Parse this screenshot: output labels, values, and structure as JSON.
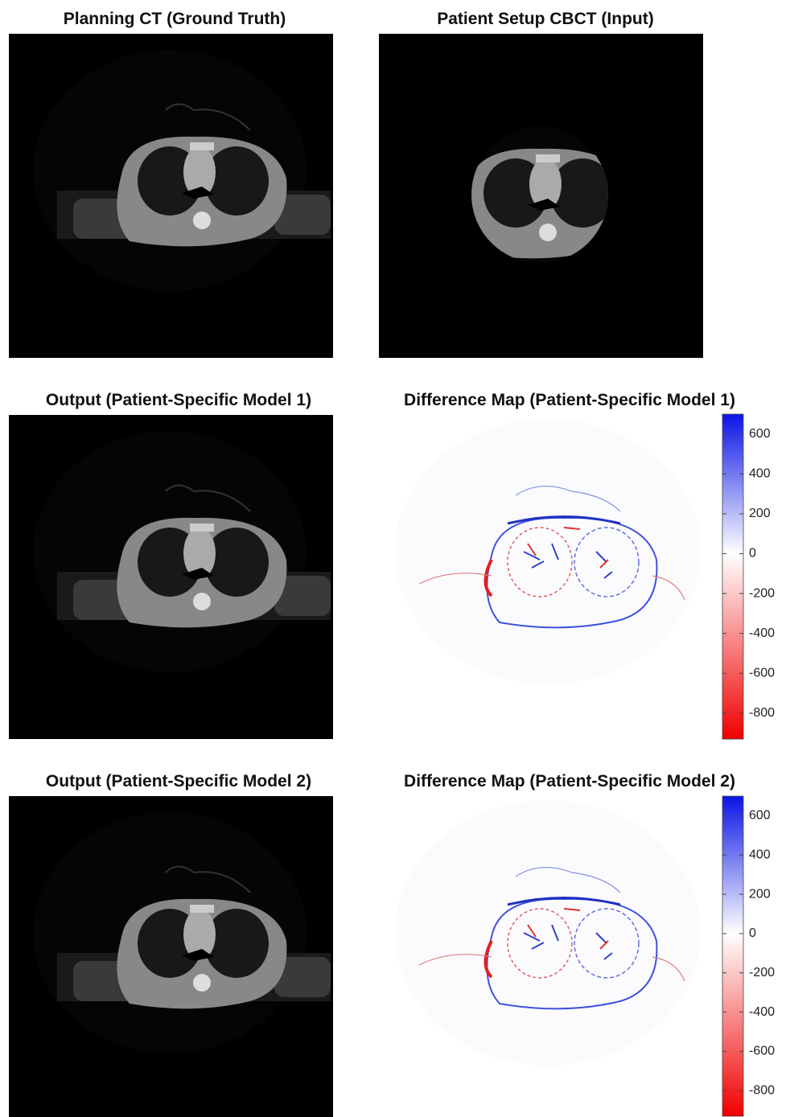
{
  "panels": [
    {
      "title": "Planning CT (Ground Truth)"
    },
    {
      "title": "Patient Setup CBCT (Input)"
    },
    {
      "title": "Output (Patient-Specific Model 1)"
    },
    {
      "title": "Difference Map (Patient-Specific Model 1)"
    },
    {
      "title": "Output (Patient-Specific Model 2)"
    },
    {
      "title": "Difference Map (Patient-Specific Model 2)"
    }
  ],
  "colorbars": [
    {
      "lim": [
        -930,
        700
      ],
      "ticks": [
        600,
        400,
        200,
        0,
        -200,
        -400,
        -600,
        -800
      ]
    },
    {
      "lim": [
        -930,
        700
      ],
      "ticks": [
        600,
        400,
        200,
        0,
        -200,
        -400,
        -600,
        -800
      ]
    }
  ]
}
